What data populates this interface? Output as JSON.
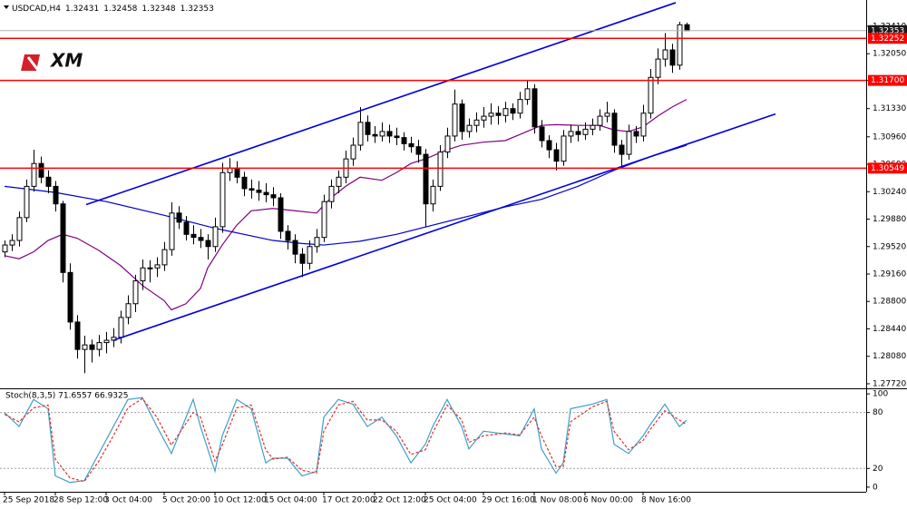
{
  "logo": "XM",
  "chart_data": [
    {
      "type": "candlestick",
      "title": "USDCAD,H4",
      "categories": [
        "25 Sep 2018",
        null,
        null,
        null,
        null,
        null,
        null,
        "28 Sep 12:00",
        null,
        null,
        null,
        null,
        null,
        null,
        "3 Oct 04:00",
        null,
        null,
        null,
        null,
        null,
        null,
        null,
        "5 Oct 20:00",
        null,
        null,
        null,
        null,
        null,
        null,
        "10 Oct 12:00",
        null,
        null,
        null,
        null,
        null,
        null,
        "15 Oct 04:00",
        null,
        null,
        null,
        null,
        null,
        null,
        null,
        "17 Oct 20:00",
        null,
        null,
        null,
        null,
        null,
        null,
        "22 Oct 12:00",
        null,
        null,
        null,
        null,
        null,
        null,
        "25 Oct 04:00",
        null,
        null,
        null,
        null,
        null,
        null,
        null,
        "29 Oct 16:00",
        null,
        null,
        null,
        null,
        null,
        null,
        "1 Nov 08:00",
        null,
        null,
        null,
        null,
        null,
        null,
        "6 Nov 00:00",
        null,
        null,
        null,
        null,
        null,
        null,
        null,
        "8 Nov 16:00",
        null,
        null,
        null,
        null,
        null,
        null
      ],
      "ohlc": [
        [
          1.2945,
          1.296,
          1.2938,
          1.2954
        ],
        [
          1.2954,
          1.2968,
          1.2946,
          1.296
        ],
        [
          1.296,
          1.2998,
          1.2952,
          1.299
        ],
        [
          1.299,
          1.304,
          1.2984,
          1.3031
        ],
        [
          1.3031,
          1.3079,
          1.3024,
          1.3061
        ],
        [
          1.3061,
          1.307,
          1.3035,
          1.3043
        ],
        [
          1.3043,
          1.3052,
          1.3022,
          1.3031
        ],
        [
          1.3031,
          1.3038,
          1.2998,
          1.3008
        ],
        [
          1.3008,
          1.3012,
          1.2905,
          1.2918
        ],
        [
          1.2918,
          1.293,
          1.2843,
          1.2853
        ],
        [
          1.2853,
          1.2862,
          1.2805,
          1.2817
        ],
        [
          1.2817,
          1.2835,
          1.2786,
          1.2823
        ],
        [
          1.2823,
          1.283,
          1.28,
          1.2817
        ],
        [
          1.2817,
          1.2836,
          1.2808,
          1.2826
        ],
        [
          1.2826,
          1.284,
          1.2812,
          1.2829
        ],
        [
          1.2829,
          1.2845,
          1.282,
          1.2833
        ],
        [
          1.2833,
          1.2868,
          1.2825,
          1.2859
        ],
        [
          1.2859,
          1.2888,
          1.285,
          1.2877
        ],
        [
          1.2877,
          1.2915,
          1.2866,
          1.2907
        ],
        [
          1.2907,
          1.2935,
          1.2895,
          1.2924
        ],
        [
          1.2924,
          1.2934,
          1.2905,
          1.2924
        ],
        [
          1.2924,
          1.2938,
          1.2912,
          1.2928
        ],
        [
          1.2928,
          1.2958,
          1.292,
          1.2948
        ],
        [
          1.2948,
          1.301,
          1.294,
          1.2996
        ],
        [
          1.2996,
          1.3005,
          1.2975,
          1.2984
        ],
        [
          1.2984,
          1.2992,
          1.296,
          1.2968
        ],
        [
          1.2968,
          1.298,
          1.2955,
          1.2964
        ],
        [
          1.2964,
          1.2975,
          1.295,
          1.296
        ],
        [
          1.296,
          1.2968,
          1.2935,
          1.2952
        ],
        [
          1.2952,
          1.299,
          1.2945,
          1.2978
        ],
        [
          1.2978,
          1.3062,
          1.297,
          1.3049
        ],
        [
          1.3049,
          1.3068,
          1.3038,
          1.3055
        ],
        [
          1.3055,
          1.3064,
          1.3035,
          1.3043
        ],
        [
          1.3043,
          1.305,
          1.3018,
          1.3028
        ],
        [
          1.3028,
          1.304,
          1.3015,
          1.3026
        ],
        [
          1.3026,
          1.3038,
          1.3012,
          1.3023
        ],
        [
          1.3023,
          1.3035,
          1.301,
          1.302
        ],
        [
          1.302,
          1.303,
          1.3005,
          1.3016
        ],
        [
          1.3016,
          1.3022,
          1.2962,
          1.2972
        ],
        [
          1.2972,
          1.298,
          1.2948,
          1.296
        ],
        [
          1.296,
          1.2968,
          1.293,
          1.2942
        ],
        [
          1.2942,
          1.295,
          1.2912,
          1.293
        ],
        [
          1.293,
          1.296,
          1.2922,
          1.2952
        ],
        [
          1.2952,
          1.2975,
          1.2944,
          1.2964
        ],
        [
          1.2964,
          1.302,
          1.2958,
          1.3011
        ],
        [
          1.3011,
          1.304,
          1.3002,
          1.3031
        ],
        [
          1.3031,
          1.3052,
          1.3022,
          1.3043
        ],
        [
          1.3043,
          1.3078,
          1.3035,
          1.3067
        ],
        [
          1.3067,
          1.3095,
          1.3058,
          1.3085
        ],
        [
          1.3085,
          1.3135,
          1.3078,
          1.3115
        ],
        [
          1.3115,
          1.3124,
          1.309,
          1.3099
        ],
        [
          1.3099,
          1.311,
          1.3088,
          1.3097
        ],
        [
          1.3097,
          1.3115,
          1.309,
          1.3103
        ],
        [
          1.3103,
          1.3112,
          1.3088,
          1.3097
        ],
        [
          1.3097,
          1.3108,
          1.3085,
          1.3095
        ],
        [
          1.3095,
          1.3102,
          1.3078,
          1.3087
        ],
        [
          1.3087,
          1.3096,
          1.3075,
          1.3083
        ],
        [
          1.3083,
          1.3092,
          1.3062,
          1.3073
        ],
        [
          1.3073,
          1.308,
          1.2978,
          1.3008
        ],
        [
          1.3008,
          1.304,
          1.2998,
          1.3031
        ],
        [
          1.3031,
          1.3085,
          1.3025,
          1.3076
        ],
        [
          1.3076,
          1.3108,
          1.3068,
          1.3097
        ],
        [
          1.3097,
          1.3158,
          1.309,
          1.3139
        ],
        [
          1.3139,
          1.3145,
          1.3092,
          1.3103
        ],
        [
          1.3103,
          1.312,
          1.3095,
          1.3111
        ],
        [
          1.3111,
          1.3128,
          1.3102,
          1.3118
        ],
        [
          1.3118,
          1.3135,
          1.3108,
          1.3123
        ],
        [
          1.3123,
          1.314,
          1.3112,
          1.3127
        ],
        [
          1.3127,
          1.3136,
          1.3112,
          1.3124
        ],
        [
          1.3124,
          1.3142,
          1.3115,
          1.3133
        ],
        [
          1.3133,
          1.314,
          1.3118,
          1.3127
        ],
        [
          1.3127,
          1.3155,
          1.312,
          1.3145
        ],
        [
          1.3145,
          1.317,
          1.3138,
          1.3159
        ],
        [
          1.3159,
          1.3165,
          1.31,
          1.3109
        ],
        [
          1.3109,
          1.3118,
          1.3082,
          1.3091
        ],
        [
          1.3091,
          1.3098,
          1.3068,
          1.3079
        ],
        [
          1.3079,
          1.3088,
          1.3052,
          1.3064
        ],
        [
          1.3064,
          1.3105,
          1.3058,
          1.3097
        ],
        [
          1.3097,
          1.3112,
          1.3088,
          1.3103
        ],
        [
          1.3103,
          1.311,
          1.309,
          1.3099
        ],
        [
          1.3099,
          1.3115,
          1.3092,
          1.3106
        ],
        [
          1.3106,
          1.312,
          1.3098,
          1.3111
        ],
        [
          1.3111,
          1.3132,
          1.3104,
          1.3123
        ],
        [
          1.3123,
          1.3142,
          1.3115,
          1.3127
        ],
        [
          1.3127,
          1.3132,
          1.3075,
          1.3085
        ],
        [
          1.3085,
          1.3092,
          1.3055,
          1.3073
        ],
        [
          1.3073,
          1.3112,
          1.3066,
          1.3103
        ],
        [
          1.3103,
          1.311,
          1.3088,
          1.3097
        ],
        [
          1.3097,
          1.3138,
          1.309,
          1.3127
        ],
        [
          1.3127,
          1.3185,
          1.312,
          1.3174
        ],
        [
          1.3174,
          1.3212,
          1.3165,
          1.3198
        ],
        [
          1.3198,
          1.3232,
          1.3188,
          1.321
        ],
        [
          1.321,
          1.3218,
          1.318,
          1.319
        ],
        [
          1.319,
          1.3247,
          1.3184,
          1.3243
        ],
        [
          1.32431,
          1.32458,
          1.32348,
          1.32353
        ]
      ],
      "up_color": "#ffffff",
      "down_color": "#000000",
      "candle_stroke": "#000000",
      "xlim": [
        -0.625,
        118.75
      ],
      "ylim": [
        1.2766,
        1.32755
      ],
      "yticks": [
        {
          "value": 1.3241,
          "label": "1.32410"
        },
        {
          "value": 1.3205,
          "label": "1.32050"
        },
        {
          "value": 1.317,
          "label": "1.31700"
        },
        {
          "value": 1.3133,
          "label": "1.31330"
        },
        {
          "value": 1.3096,
          "label": "1.30960"
        },
        {
          "value": 1.306,
          "label": "1.30600"
        },
        {
          "value": 1.3024,
          "label": "1.30240"
        },
        {
          "value": 1.2988,
          "label": "1.29880"
        },
        {
          "value": 1.2952,
          "label": "1.29520"
        },
        {
          "value": 1.2916,
          "label": "1.29160"
        },
        {
          "value": 1.288,
          "label": "1.28800"
        },
        {
          "value": 1.2844,
          "label": "1.28440"
        },
        {
          "value": 1.2808,
          "label": "1.28080"
        },
        {
          "value": 1.2772,
          "label": "1.27720"
        }
      ],
      "grid": false,
      "series": [
        {
          "color": "#800080",
          "x": [
            0,
            2,
            4,
            6,
            8,
            10,
            13,
            16,
            19,
            22,
            23,
            25,
            27,
            28,
            30,
            32,
            34,
            37,
            40,
            43,
            45,
            47,
            49,
            52,
            54,
            56,
            58,
            61,
            63,
            66,
            69,
            71,
            74,
            76,
            79,
            82,
            84,
            86,
            88,
            90,
            92,
            94
          ],
          "values": [
            1.294,
            1.2936,
            1.2945,
            1.296,
            1.2968,
            1.2963,
            1.2947,
            1.2927,
            1.2901,
            1.2881,
            1.2869,
            1.2877,
            1.2897,
            1.2924,
            1.2954,
            1.298,
            1.2999,
            1.3002,
            1.2999,
            1.2996,
            1.3016,
            1.3031,
            1.3043,
            1.3039,
            1.3049,
            1.3061,
            1.3067,
            1.3079,
            1.3085,
            1.3089,
            1.3091,
            1.3099,
            1.3111,
            1.3112,
            1.3111,
            1.3111,
            1.3105,
            1.3103,
            1.3109,
            1.3123,
            1.3135,
            1.3145
          ]
        },
        {
          "color": "#0000cc",
          "x": [
            0,
            7,
            14,
            22,
            29,
            37,
            41,
            44,
            49,
            54,
            59,
            64,
            69,
            74,
            79,
            84,
            89,
            94
          ],
          "values": [
            1.3031,
            1.3023,
            1.3011,
            1.2993,
            1.2976,
            1.296,
            1.2956,
            1.2954,
            1.2959,
            1.2968,
            1.298,
            1.2992,
            1.3004,
            1.3014,
            1.3031,
            1.3052,
            1.307,
            1.3085
          ]
        }
      ],
      "trendlines": [
        {
          "x": [
            11.25,
            92.5
          ],
          "values": [
            1.3007,
            1.3272
          ]
        },
        {
          "x": [
            15,
            106.25
          ],
          "values": [
            1.2829,
            1.3126
          ]
        }
      ],
      "trendline_color": "#0000dd",
      "levels": [
        1.32252,
        {
          "value": 1.317,
          "label": "1.31700"
        },
        1.30549
      ],
      "level_color": "#ff0000"
    },
    {
      "type": "line",
      "title": "Stoch(8,3,5) 71.6557 66.9325",
      "xlim": [
        -0.625,
        118.75
      ],
      "ylim": [
        -5,
        104
      ],
      "yticks": [
        0,
        20,
        80,
        100
      ],
      "levels": [
        20,
        80
      ],
      "series": [
        {
          "color": "#3fa0c8",
          "dashed": false,
          "x": [
            0,
            2,
            4,
            6,
            7,
            9,
            11,
            13,
            15,
            17,
            19,
            21,
            23,
            26,
            27,
            29,
            30,
            32,
            34,
            36,
            37,
            39,
            41,
            43,
            44,
            46,
            48,
            50,
            52,
            54,
            56,
            58,
            59,
            61,
            63,
            64,
            66,
            69,
            71,
            73,
            74,
            76,
            77,
            78,
            81,
            83,
            84,
            86,
            88,
            89,
            91,
            93,
            94
          ],
          "values": [
            80,
            65,
            94,
            84,
            12,
            5,
            7,
            36,
            65,
            94,
            96,
            65,
            36,
            94,
            65,
            17,
            55,
            94,
            84,
            26,
            31,
            31,
            12,
            17,
            75,
            94,
            89,
            65,
            75,
            55,
            26,
            46,
            65,
            94,
            65,
            41,
            60,
            57,
            55,
            84,
            41,
            15,
            26,
            84,
            89,
            94,
            46,
            36,
            55,
            67,
            89,
            65,
            71.6557
          ]
        },
        {
          "color": "#e03030",
          "dashed": true,
          "x": [
            0,
            2,
            4,
            6,
            7,
            9,
            11,
            13,
            15,
            17,
            19,
            21,
            23,
            26,
            27,
            29,
            30,
            32,
            34,
            36,
            37,
            39,
            41,
            43,
            44,
            46,
            48,
            50,
            52,
            54,
            56,
            58,
            59,
            61,
            63,
            64,
            66,
            69,
            71,
            73,
            74,
            76,
            77,
            78,
            81,
            83,
            84,
            86,
            88,
            89,
            91,
            93,
            94
          ],
          "values": [
            78,
            70,
            85,
            88,
            30,
            10,
            6,
            28,
            55,
            85,
            95,
            75,
            45,
            80,
            75,
            28,
            45,
            85,
            88,
            40,
            30,
            32,
            18,
            15,
            60,
            88,
            92,
            72,
            72,
            60,
            35,
            40,
            58,
            88,
            72,
            48,
            55,
            58,
            56,
            75,
            55,
            22,
            22,
            70,
            86,
            92,
            60,
            40,
            50,
            62,
            82,
            72,
            66.9325
          ]
        }
      ]
    }
  ]
}
